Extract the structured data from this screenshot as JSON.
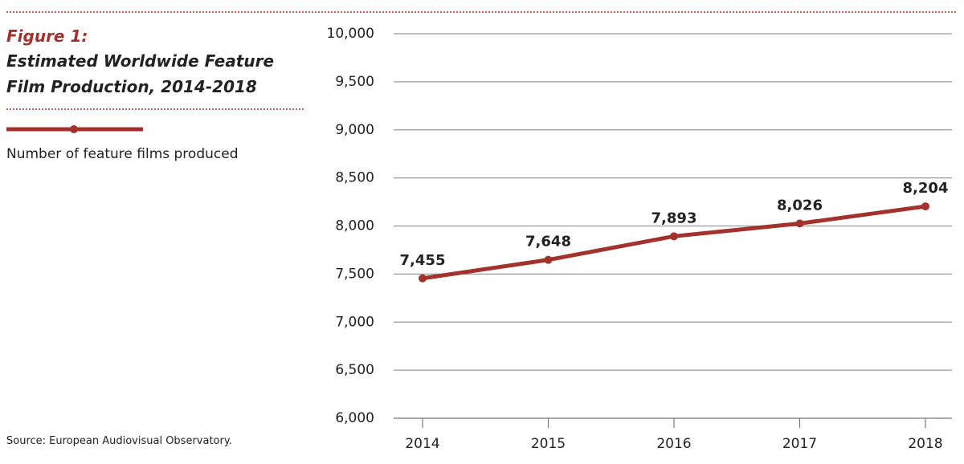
{
  "chart_data": {
    "type": "line",
    "figure_label": "Figure 1:",
    "title": "Estimated Worldwide Feature Film Production, 2014-2018",
    "categories": [
      "2014",
      "2015",
      "2016",
      "2017",
      "2018"
    ],
    "series": [
      {
        "name": "Number of feature films produced",
        "color": "#a3312c",
        "values": [
          7455,
          7648,
          7893,
          8026,
          8204
        ],
        "value_labels": [
          "7,455",
          "7,648",
          "7,893",
          "8,026",
          "8,204"
        ]
      }
    ],
    "ylim": [
      6000,
      10000
    ],
    "yticks": [
      {
        "value": 6000,
        "label": "6,000"
      },
      {
        "value": 6500,
        "label": "6,500"
      },
      {
        "value": 7000,
        "label": "7,000"
      },
      {
        "value": 7500,
        "label": "7,500"
      },
      {
        "value": 8000,
        "label": "8,000"
      },
      {
        "value": 8500,
        "label": "8,500"
      },
      {
        "value": 9000,
        "label": "9,000"
      },
      {
        "value": 9500,
        "label": "9,500"
      },
      {
        "value": 10000,
        "label": "10,000"
      }
    ],
    "grid": true,
    "source": "Source: European Audiovisual Observatory."
  }
}
